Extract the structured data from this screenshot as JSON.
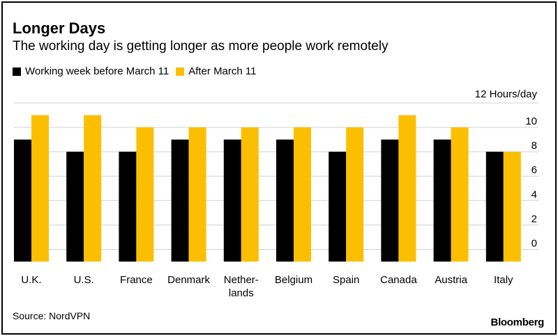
{
  "title": "Longer Days",
  "subtitle": "The working day is getting longer as more people work remotely",
  "source": "Source: NordVPN",
  "brand": "Bloomberg",
  "legend": [
    {
      "label": "Working week before March 11",
      "color": "#000000"
    },
    {
      "label": "After March 11",
      "color": "#fcbf00"
    }
  ],
  "chart_data": {
    "type": "bar",
    "categories": [
      "U.K.",
      "U.S.",
      "France",
      "Denmark",
      "Nether-\nlands",
      "Belgium",
      "Spain",
      "Canada",
      "Austria",
      "Italy"
    ],
    "series": [
      {
        "name": "Working week before March 11",
        "color": "#000000",
        "values": [
          9,
          8,
          8,
          9,
          9,
          9,
          8,
          9,
          9,
          8
        ]
      },
      {
        "name": "After March 11",
        "color": "#fcbf00",
        "values": [
          11,
          11,
          10,
          10,
          10,
          10,
          10,
          11,
          10,
          8
        ]
      }
    ],
    "ylabel": "Hours/day",
    "yticks": [
      0,
      2,
      4,
      6,
      8,
      10,
      12
    ],
    "ylim": [
      -1,
      12
    ],
    "grid": true,
    "axis_side": "right"
  }
}
